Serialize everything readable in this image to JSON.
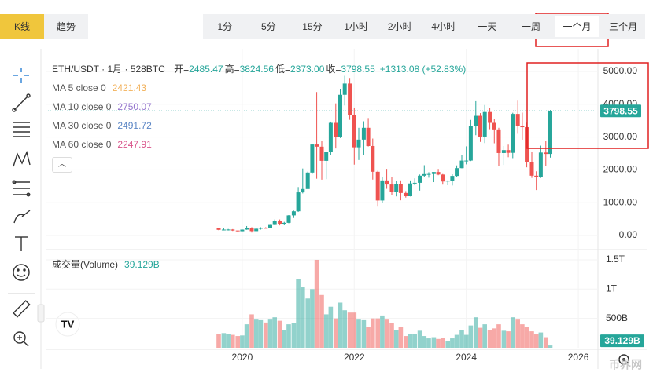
{
  "toolbar": {
    "tabs": [
      "K线",
      "趋势"
    ],
    "intervals": [
      "1分",
      "5分",
      "15分",
      "1小时",
      "2小时",
      "4小时",
      "一天",
      "一周",
      "一个月",
      "三个月"
    ],
    "selected_interval": 8
  },
  "chart_data": {
    "type": "candlestick",
    "title": "ETH/USDT · 1月 · 528BTC",
    "ohlc_labels": [
      "开=",
      "高=",
      "低=",
      "收="
    ],
    "ohlc_value_labels": [
      "2485.47",
      "3824.56",
      "2373.00",
      "3798.55"
    ],
    "change_label": "+1313.08 (+52.83%)",
    "indicators": [
      {
        "name": "MA 5 close 0",
        "value": 2421.43,
        "color": "#f2b15a"
      },
      {
        "name": "MA 10 close 0",
        "value": 2750.07,
        "color": "#9575cd"
      },
      {
        "name": "MA 30 close 0",
        "value": 2491.72,
        "color": "#5b86c5"
      },
      {
        "name": "MA 60 close 0",
        "value": 2247.91,
        "color": "#d9548a"
      }
    ],
    "up_color": "#26a69a",
    "down_color": "#ef5350",
    "x": [
      2019.58,
      2019.67,
      2019.75,
      2019.83,
      2019.92,
      2020.0,
      2020.08,
      2020.17,
      2020.25,
      2020.33,
      2020.42,
      2020.5,
      2020.58,
      2020.67,
      2020.75,
      2020.83,
      2020.92,
      2021.0,
      2021.08,
      2021.17,
      2021.25,
      2021.33,
      2021.42,
      2021.5,
      2021.58,
      2021.67,
      2021.75,
      2021.83,
      2021.92,
      2022.0,
      2022.08,
      2022.17,
      2022.25,
      2022.33,
      2022.42,
      2022.5,
      2022.58,
      2022.67,
      2022.75,
      2022.83,
      2022.92,
      2023.0,
      2023.08,
      2023.17,
      2023.25,
      2023.33,
      2023.42,
      2023.5,
      2023.58,
      2023.67,
      2023.75,
      2023.83,
      2023.92,
      2024.0,
      2024.08,
      2024.17,
      2024.25,
      2024.33,
      2024.42,
      2024.5,
      2024.58,
      2024.67,
      2024.75,
      2024.83,
      2024.92,
      2025.0,
      2025.08,
      2025.17,
      2025.25,
      2025.33,
      2025.42,
      2025.5
    ],
    "open": [
      218,
      172,
      180,
      182,
      152,
      130,
      180,
      218,
      133,
      206,
      231,
      225,
      345,
      433,
      359,
      386,
      612,
      737,
      1314,
      1416,
      1918,
      2773,
      2707,
      2275,
      2536,
      3433,
      3001,
      4288,
      4631,
      3683,
      2688,
      2922,
      3282,
      2727,
      1942,
      1067,
      1678,
      1553,
      1328,
      1572,
      1295,
      1196,
      1585,
      1605,
      1822,
      1870,
      1874,
      1934,
      1857,
      1645,
      1671,
      1815,
      2052,
      2282,
      2283,
      3340,
      3647,
      3015,
      3763,
      3433,
      3233,
      2513,
      2603,
      2519,
      3705,
      3337,
      3300,
      2237,
      1822,
      1794,
      2528,
      2485.47
    ],
    "high": [
      230,
      223,
      199,
      195,
      153,
      184,
      288,
      253,
      227,
      251,
      253,
      349,
      489,
      488,
      415,
      622,
      757,
      1476,
      2041,
      1947,
      2798,
      4372,
      2894,
      2550,
      3470,
      4027,
      4460,
      4868,
      4778,
      3900,
      3282,
      3480,
      3580,
      2954,
      1973,
      1785,
      2030,
      1790,
      1662,
      1679,
      1353,
      1678,
      1742,
      1858,
      2141,
      1928,
      1933,
      2028,
      1874,
      1680,
      1865,
      2135,
      2445,
      2717,
      3522,
      4093,
      3730,
      3977,
      3887,
      3563,
      3283,
      2728,
      2769,
      3740,
      4109,
      3745,
      3438,
      2550,
      1956,
      2738,
      2880,
      3824.56
    ],
    "low": [
      160,
      155,
      153,
      138,
      116,
      128,
      173,
      90,
      131,
      179,
      216,
      222,
      334,
      308,
      335,
      373,
      533,
      717,
      1283,
      1436,
      1876,
      1730,
      1700,
      1718,
      2450,
      2652,
      2971,
      3964,
      3525,
      2159,
      2300,
      2450,
      2712,
      1704,
      880,
      1000,
      1422,
      1220,
      1191,
      1073,
      1155,
      1190,
      1529,
      1368,
      1784,
      1761,
      1626,
      1837,
      1550,
      1531,
      1523,
      1771,
      2045,
      2167,
      2268,
      3056,
      2852,
      2817,
      3240,
      2810,
      2111,
      2150,
      2385,
      2357,
      3099,
      2920,
      2077,
      1755,
      1385,
      1754,
      2112,
      2373
    ],
    "close": [
      172,
      180,
      182,
      152,
      130,
      180,
      218,
      133,
      206,
      231,
      225,
      345,
      433,
      359,
      386,
      612,
      737,
      1314,
      1416,
      1918,
      2773,
      2707,
      2275,
      2536,
      3433,
      3001,
      4288,
      4631,
      3683,
      2688,
      2922,
      3282,
      2727,
      1942,
      1067,
      1678,
      1553,
      1328,
      1572,
      1295,
      1196,
      1585,
      1605,
      1822,
      1870,
      1874,
      1934,
      1857,
      1645,
      1671,
      1815,
      2052,
      2282,
      2283,
      3340,
      3647,
      3015,
      3763,
      3433,
      3233,
      2513,
      2603,
      2519,
      3705,
      3337,
      3300,
      2237,
      1822,
      1794,
      2528,
      2485,
      3798.55
    ],
    "xlim": [
      2016.49,
      2026.35
    ],
    "xticks": [
      2020,
      2022,
      2024,
      2026
    ],
    "ylim": [
      -287,
      5502
    ],
    "yticks": [
      {
        "value": 0,
        "label": "0.00"
      },
      {
        "value": 1000,
        "label": "1000.00"
      },
      {
        "value": 2000,
        "label": "2000.00"
      },
      {
        "value": 3000,
        "label": "3000.00"
      },
      {
        "value": 4000,
        "label": "4000.00"
      },
      {
        "value": 5000,
        "label": "5000.00"
      }
    ],
    "last_price_label": "3798.55",
    "volume": {
      "title": "成交量(Volume)",
      "current_label": "39.129B",
      "values": [
        230,
        250,
        240,
        220,
        200,
        210,
        400,
        570,
        480,
        470,
        430,
        480,
        520,
        460,
        300,
        400,
        420,
        1170,
        1040,
        840,
        1000,
        1500,
        900,
        570,
        700,
        500,
        770,
        640,
        600,
        600,
        480,
        470,
        360,
        500,
        500,
        550,
        480,
        420,
        300,
        350,
        200,
        240,
        230,
        290,
        200,
        160,
        180,
        150,
        170,
        120,
        160,
        220,
        300,
        220,
        380,
        520,
        340,
        400,
        300,
        330,
        400,
        290,
        280,
        520,
        480,
        400,
        350,
        280,
        240,
        260,
        180,
        39.129
      ],
      "ylim": [
        0,
        1620
      ],
      "yticks": [
        {
          "value": 500,
          "label": "500B"
        },
        {
          "value": 1000,
          "label": "1T"
        },
        {
          "value": 1500,
          "label": "1.5T"
        }
      ]
    }
  },
  "watermark": "币界网"
}
